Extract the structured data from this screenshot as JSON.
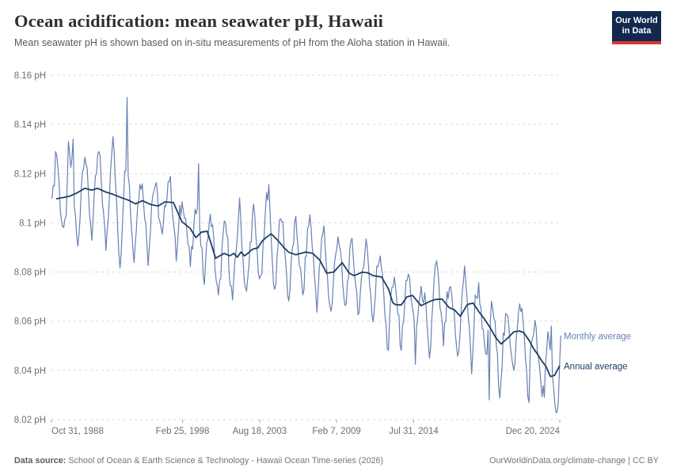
{
  "header": {
    "title": "Ocean acidification: mean seawater pH, Hawaii",
    "subtitle": "Mean seawater pH is shown based on in-situ measurements of pH from the Aloha station in Hawaii.",
    "logo": {
      "line1": "Our World",
      "line2": "in Data",
      "bg_color": "#12294f",
      "bar_color": "#d8382e"
    }
  },
  "footer": {
    "source_label": "Data source:",
    "source_text": "School of Ocean & Earth Science & Technology - Hawaii Ocean Time-series (2026)",
    "right_text": "OurWorldinData.org/climate-change | CC BY"
  },
  "chart_data": {
    "type": "line",
    "title": "Ocean acidification: mean seawater pH, Hawaii",
    "subtitle": "Mean seawater pH is shown based on in-situ measurements of pH from the Aloha station in Hawaii.",
    "grid": true,
    "legend_position": "right-end-of-lines",
    "colors": {
      "grid": "#dadada",
      "tick_text": "#6e6e6e"
    },
    "x_axis": {
      "range": [
        1988.83,
        2024.97
      ],
      "ticks": [
        {
          "label": "Oct 31, 1988",
          "year": 1988.83,
          "align": "start"
        },
        {
          "label": "Feb 25, 1998",
          "year": 1998.15,
          "align": "middle"
        },
        {
          "label": "Aug 18, 2003",
          "year": 2003.63,
          "align": "middle"
        },
        {
          "label": "Feb 7, 2009",
          "year": 2009.1,
          "align": "middle"
        },
        {
          "label": "Jul 31, 2014",
          "year": 2014.58,
          "align": "middle"
        },
        {
          "label": "Dec 20, 2024",
          "year": 2024.97,
          "align": "end"
        }
      ]
    },
    "y_axis": {
      "unit": "pH",
      "range": [
        8.02,
        8.16
      ],
      "ticks": [
        {
          "label": "8.16 pH",
          "value": 8.16
        },
        {
          "label": "8.14 pH",
          "value": 8.14
        },
        {
          "label": "8.12 pH",
          "value": 8.12
        },
        {
          "label": "8.1 pH",
          "value": 8.1
        },
        {
          "label": "8.08 pH",
          "value": 8.08
        },
        {
          "label": "8.06 pH",
          "value": 8.06
        },
        {
          "label": "8.04 pH",
          "value": 8.04
        },
        {
          "label": "8.02 pH",
          "value": 8.02
        }
      ]
    },
    "series": [
      {
        "name": "Monthly average",
        "color": "#6781b3",
        "stroke_width": 1.2,
        "model": {
          "start": 1988.87,
          "end": 2025.07,
          "step_months": 1,
          "first_value": 8.11,
          "last_value": 8.054,
          "seasonal_offsets_milli": [
            8,
            14,
            17,
            12,
            5,
            -3,
            -10,
            -16,
            -21,
            -15,
            -7,
            2
          ],
          "peak_amplitude_by_year": [
            1.0,
            1.1,
            1.3,
            0.9,
            0.85,
            1.4,
            1.1,
            0.45,
            0.5,
            0.6,
            0.5,
            0.9,
            0.6,
            0.7,
            1.15,
            0.9,
            1.1,
            0.65,
            0.7,
            0.85,
            0.9,
            0.8,
            0.7,
            0.75,
            0.55,
            0.45,
            0.5,
            0.3,
            0.85,
            0.35,
            0.9,
            0.55,
            0.6,
            0.5,
            0.65,
            0.6,
            1.0,
            1.0
          ],
          "trough_amplitude_by_year": [
            0.8,
            0.76,
            1.1,
            0.86,
            1.05,
            1.3,
            1.1,
            1.05,
            0.7,
            0.95,
            0.7,
            1.0,
            0.85,
            0.9,
            0.8,
            0.8,
            1.05,
            0.95,
            0.85,
            0.9,
            0.8,
            0.85,
            0.8,
            0.9,
            1.2,
            0.8,
            0.8,
            1.2,
            0.8,
            0.85,
            1.25,
            0.8,
            0.9,
            0.65,
            0.95,
            0.7,
            0.9,
            0.9
          ],
          "jitter_milli": 4,
          "anomalies": [
            [
              1988.87,
              8.11
            ],
            [
              1989.15,
              8.129
            ],
            [
              1990.05,
              8.133
            ],
            [
              1990.2,
              8.1225
            ],
            [
              1990.35,
              8.134
            ],
            [
              1993.17,
              8.135
            ],
            [
              1994.2,
              8.151
            ],
            [
              1999.3,
              8.124
            ],
            [
              2004.3,
              8.1155
            ],
            [
              2012.75,
              8.048
            ],
            [
              2014.7,
              8.0425
            ],
            [
              2019.95,
              8.028
            ],
            [
              2022.75,
              8.027
            ],
            [
              2023.9,
              8.029
            ],
            [
              2024.35,
              8.058
            ],
            [
              2024.9,
              8.0275
            ],
            [
              2025.05,
              8.054
            ]
          ]
        }
      },
      {
        "name": "Annual average",
        "color": "#1d3d63",
        "stroke_width": 1.8,
        "points": [
          [
            1989.2,
            8.1098
          ],
          [
            1989.6,
            8.1102
          ],
          [
            1990.1,
            8.1108
          ],
          [
            1990.6,
            8.112
          ],
          [
            1991.2,
            8.114
          ],
          [
            1991.7,
            8.1133
          ],
          [
            1992.1,
            8.114
          ],
          [
            1992.7,
            8.1125
          ],
          [
            1993.2,
            8.1116
          ],
          [
            1993.8,
            8.1102
          ],
          [
            1994.3,
            8.1092
          ],
          [
            1994.8,
            8.1077
          ],
          [
            1995.3,
            8.109
          ],
          [
            1995.9,
            8.1074
          ],
          [
            1996.4,
            8.1068
          ],
          [
            1996.9,
            8.1085
          ],
          [
            1997.5,
            8.1082
          ],
          [
            1998.1,
            8.1005
          ],
          [
            1998.7,
            8.0977
          ],
          [
            1999.1,
            8.094
          ],
          [
            1999.5,
            8.0962
          ],
          [
            1999.9,
            8.0966
          ],
          [
            2000.5,
            8.0856
          ],
          [
            2001.1,
            8.0876
          ],
          [
            2001.5,
            8.0866
          ],
          [
            2001.8,
            8.0876
          ],
          [
            2002.05,
            8.086
          ],
          [
            2002.3,
            8.0881
          ],
          [
            2002.55,
            8.0866
          ],
          [
            2002.8,
            8.0876
          ],
          [
            2003.1,
            8.0892
          ],
          [
            2003.5,
            8.0898
          ],
          [
            2003.8,
            8.0925
          ],
          [
            2004.1,
            8.0941
          ],
          [
            2004.45,
            8.0955
          ],
          [
            2004.9,
            8.093
          ],
          [
            2005.3,
            8.0903
          ],
          [
            2005.7,
            8.088
          ],
          [
            2006.2,
            8.087
          ],
          [
            2006.9,
            8.0881
          ],
          [
            2007.4,
            8.0876
          ],
          [
            2007.9,
            8.0849
          ],
          [
            2008.4,
            8.0795
          ],
          [
            2008.9,
            8.08
          ],
          [
            2009.5,
            8.0838
          ],
          [
            2010.0,
            8.0795
          ],
          [
            2010.35,
            8.0785
          ],
          [
            2010.9,
            8.0799
          ],
          [
            2011.3,
            8.0797
          ],
          [
            2011.7,
            8.0785
          ],
          [
            2012.3,
            8.078
          ],
          [
            2012.8,
            8.073
          ],
          [
            2013.1,
            8.0675
          ],
          [
            2013.3,
            8.0667
          ],
          [
            2013.7,
            8.0666
          ],
          [
            2014.1,
            8.0699
          ],
          [
            2014.5,
            8.0705
          ],
          [
            2015.1,
            8.0663
          ],
          [
            2015.8,
            8.0682
          ],
          [
            2016.1,
            8.0688
          ],
          [
            2016.6,
            8.069
          ],
          [
            2017.1,
            8.0655
          ],
          [
            2017.5,
            8.0645
          ],
          [
            2017.9,
            8.062
          ],
          [
            2018.4,
            8.0668
          ],
          [
            2018.8,
            8.0674
          ],
          [
            2019.2,
            8.064
          ],
          [
            2019.6,
            8.061
          ],
          [
            2020.0,
            8.0576
          ],
          [
            2020.4,
            8.0535
          ],
          [
            2020.8,
            8.0507
          ],
          [
            2021.3,
            8.0533
          ],
          [
            2021.7,
            8.0557
          ],
          [
            2022.1,
            8.056
          ],
          [
            2022.4,
            8.0554
          ],
          [
            2022.8,
            8.0521
          ],
          [
            2023.1,
            8.0489
          ],
          [
            2023.4,
            8.0465
          ],
          [
            2023.7,
            8.0438
          ],
          [
            2024.0,
            8.0415
          ],
          [
            2024.3,
            8.0375
          ],
          [
            2024.6,
            8.038
          ],
          [
            2024.95,
            8.0417
          ]
        ]
      }
    ]
  }
}
